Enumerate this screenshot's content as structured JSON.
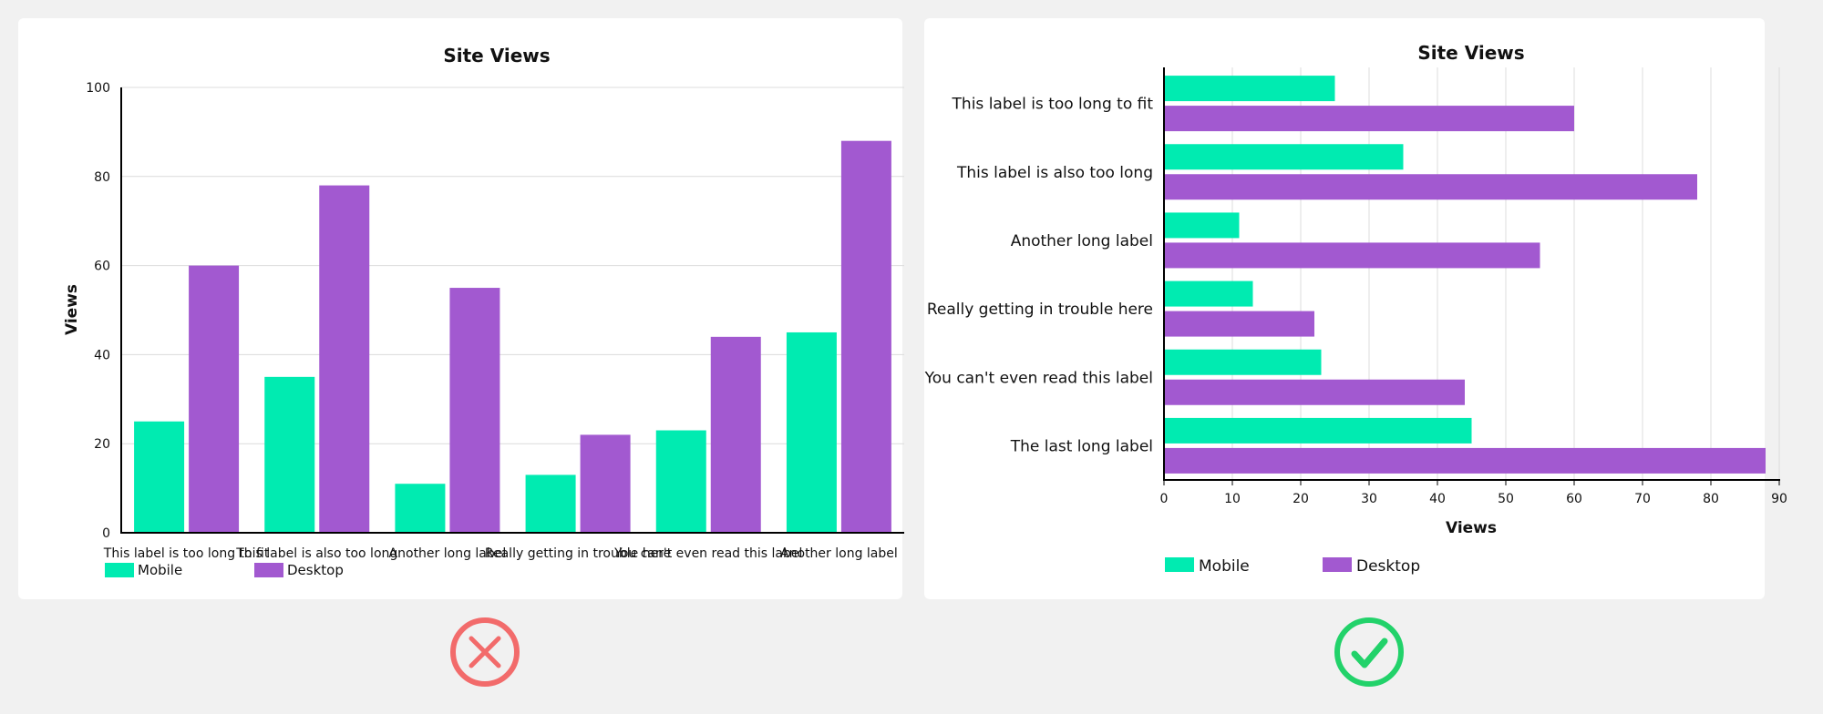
{
  "colors": {
    "mobile": "#00ebb1",
    "desktop": "#a259d0",
    "bad": "#f26b6b",
    "good": "#22d26a"
  },
  "chart_data": [
    {
      "type": "bar",
      "orientation": "vertical",
      "title": "Site Views",
      "xlabel": "",
      "ylabel": "Views",
      "ylim": [
        0,
        100
      ],
      "yticks": [
        0,
        20,
        40,
        60,
        80,
        100
      ],
      "grid": true,
      "legend_position": "bottom-left",
      "categories": [
        "This label is too long to fit",
        "This label is also too long",
        "Another long label",
        "Really getting in trouble here",
        "You can't even read this label",
        "Another long label"
      ],
      "series": [
        {
          "name": "Mobile",
          "values": [
            25,
            35,
            11,
            13,
            23,
            45
          ]
        },
        {
          "name": "Desktop",
          "values": [
            60,
            78,
            55,
            22,
            44,
            88
          ]
        }
      ]
    },
    {
      "type": "bar",
      "orientation": "horizontal",
      "title": "Site Views",
      "xlabel": "Views",
      "ylabel": "",
      "xlim": [
        0,
        90
      ],
      "xticks": [
        0,
        10,
        20,
        30,
        40,
        50,
        60,
        70,
        80,
        90
      ],
      "grid": true,
      "legend_position": "bottom-left",
      "categories": [
        "This label is too long to fit",
        "This label is also too long",
        "Another long label",
        "Really getting in trouble here",
        "You can't even read this label",
        "The last long label"
      ],
      "series": [
        {
          "name": "Mobile",
          "values": [
            25,
            35,
            11,
            13,
            23,
            45
          ]
        },
        {
          "name": "Desktop",
          "values": [
            60,
            78,
            55,
            22,
            44,
            88
          ]
        }
      ]
    }
  ]
}
